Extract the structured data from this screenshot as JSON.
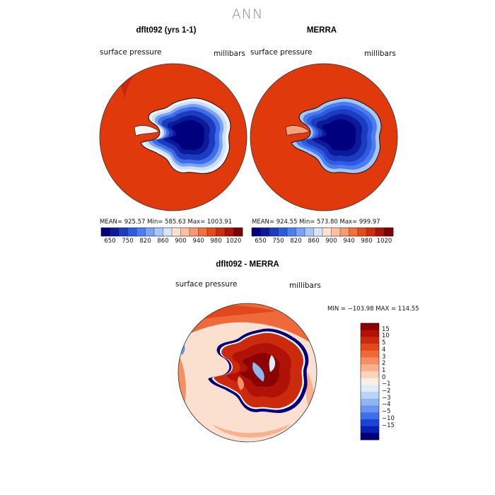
{
  "season": "ANN",
  "panels": [
    {
      "title": "dflt092 (yrs 1-1)",
      "variable": "surface pressure",
      "units": "millibars",
      "stats": "MEAN= 925.57   Min= 585.63   Max= 1003.91"
    },
    {
      "title": "MERRA",
      "variable": "surface pressure",
      "units": "millibars",
      "stats": "MEAN= 924.55   Min= 573.80   Max= 999.97"
    }
  ],
  "top_colorbar": {
    "colors": [
      "#00007f",
      "#0a1a9a",
      "#1c3cc0",
      "#2e5ce0",
      "#4a7ef0",
      "#7aa2f6",
      "#a9c6fa",
      "#d6e5fc",
      "#fde2d0",
      "#fcc0a0",
      "#f89a72",
      "#f0703e",
      "#e44a1a",
      "#cc2e0c",
      "#a8140a",
      "#7f0000"
    ],
    "tick_labels": [
      "650",
      "750",
      "820",
      "860",
      "900",
      "940",
      "980",
      "1020"
    ]
  },
  "diff_panel": {
    "title": "dflt092 - MERRA",
    "variable": "surface pressure",
    "units": "millibars",
    "stats": "MIN = −103.98  MAX = 114.55"
  },
  "diff_colorbar": {
    "colors": [
      "#8b0000",
      "#b01208",
      "#cc2a0c",
      "#e2481c",
      "#ee6a3a",
      "#f58e62",
      "#f9b08e",
      "#fbd2bc",
      "#fdeee4",
      "#dcecfa",
      "#b8d4f6",
      "#90b6f2",
      "#6a94ee",
      "#4070e8",
      "#1c44d6",
      "#0a20b0",
      "#00007a"
    ],
    "tick_labels": [
      "15",
      "10",
      "5",
      "4",
      "3",
      "2",
      "1",
      "0",
      "−1",
      "−2",
      "−3",
      "−4",
      "−5",
      "−10",
      "−15"
    ]
  }
}
